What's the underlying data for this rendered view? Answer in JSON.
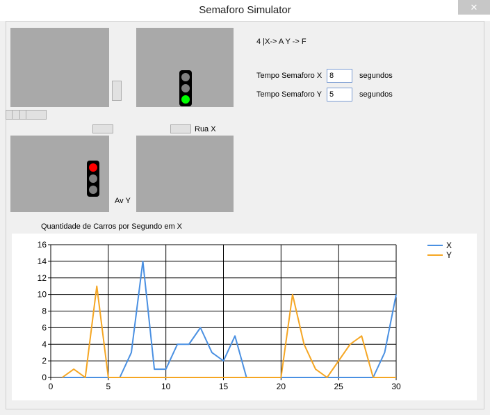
{
  "window": {
    "title": "Semaforo Simulator",
    "close_label": "✕"
  },
  "status_text": "4 |X-> A  Y -> F",
  "fields": [
    {
      "label": "Tempo Semaforo X",
      "value": "8",
      "unit": "segundos"
    },
    {
      "label": "Tempo Semaforo Y",
      "value": "5",
      "unit": "segundos"
    }
  ],
  "street_labels": {
    "x": "Rua X",
    "y": "Av Y"
  },
  "lights": {
    "x": {
      "active": "green"
    },
    "y": {
      "active": "red"
    }
  },
  "colors": {
    "red": "#ff0000",
    "green": "#00ff00",
    "off": "#808080",
    "series_x": "#4a90e2",
    "series_y": "#f5a623"
  },
  "chart_data": {
    "type": "line",
    "title": "Quantidade de Carros por Segundo em X",
    "xlim": [
      0,
      30
    ],
    "ylim": [
      0,
      16
    ],
    "xticks": [
      0,
      5,
      10,
      15,
      20,
      25,
      30
    ],
    "yticks": [
      0,
      2,
      4,
      6,
      8,
      10,
      12,
      14,
      16
    ],
    "grid": true,
    "legend": "top-right",
    "x": [
      1,
      2,
      3,
      4,
      5,
      6,
      7,
      8,
      9,
      10,
      11,
      12,
      13,
      14,
      15,
      16,
      17,
      18,
      19,
      20,
      21,
      22,
      23,
      24,
      25,
      26,
      27,
      28,
      29,
      30
    ],
    "series": [
      {
        "name": "X",
        "color": "#4a90e2",
        "values": [
          0,
          0,
          0,
          0,
          0,
          0,
          3,
          14,
          1,
          1,
          4,
          4,
          6,
          3,
          2,
          5,
          0,
          0,
          0,
          0,
          0,
          0,
          0,
          0,
          0,
          0,
          0,
          0,
          3,
          10
        ]
      },
      {
        "name": "Y",
        "color": "#f5a623",
        "values": [
          0,
          1,
          0,
          11,
          0,
          0,
          0,
          0,
          0,
          0,
          0,
          0,
          0,
          0,
          0,
          0,
          0,
          0,
          0,
          0,
          10,
          4,
          1,
          0,
          2,
          4,
          5,
          0,
          0,
          0
        ]
      }
    ]
  }
}
